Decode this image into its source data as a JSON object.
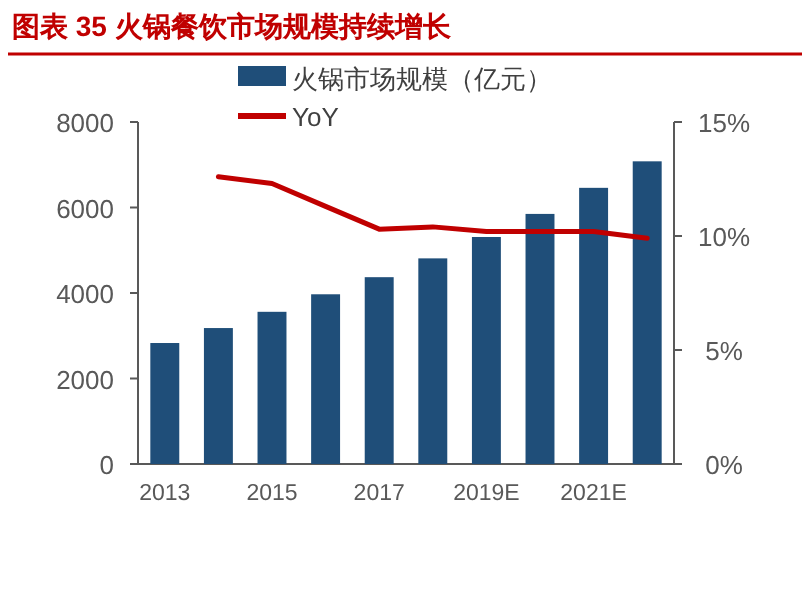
{
  "chart_data": {
    "type": "bar",
    "title": "图表 35  火锅餐饮市场规模持续增长",
    "categories": [
      "2013",
      null,
      "2015",
      null,
      "2017",
      null,
      "2019E",
      null,
      "2021E",
      null
    ],
    "series": [
      {
        "name": "火锅市场规模（亿元）",
        "color": "#1f4e79",
        "values": [
          2830,
          3180,
          3560,
          3970,
          4370,
          4810,
          5310,
          5850,
          6460,
          7080
        ]
      },
      {
        "name": "YoY",
        "type": "line",
        "axis": "y2",
        "color": "#c00000",
        "values": [
          null,
          12.6,
          12.3,
          11.3,
          10.3,
          10.4,
          10.2,
          10.2,
          10.2,
          9.9
        ]
      }
    ],
    "ylim": [
      0,
      8000
    ],
    "yticks": [
      0,
      2000,
      4000,
      6000,
      8000
    ],
    "y2lim": [
      0,
      15
    ],
    "y2ticks": [
      {
        "value": 0,
        "label": "0%"
      },
      {
        "value": 5,
        "label": "5%"
      },
      {
        "value": 10,
        "label": "10%"
      },
      {
        "value": 15,
        "label": "15%"
      }
    ],
    "legend": "top",
    "grid": false,
    "marker": "none",
    "line_style": "solid"
  }
}
